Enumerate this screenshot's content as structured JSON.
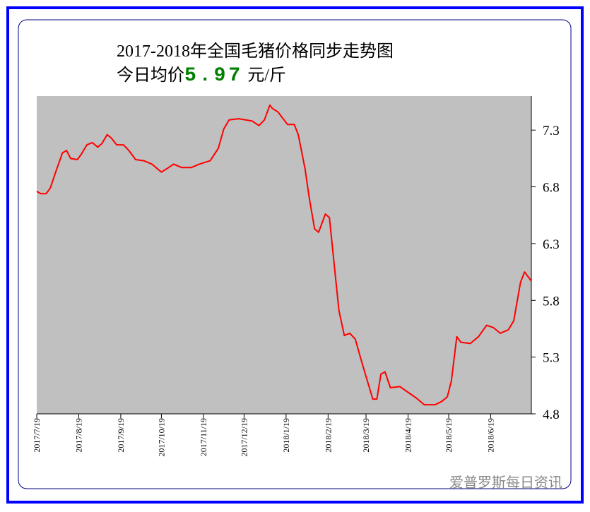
{
  "chart_data": {
    "type": "line",
    "title": "2017-2018年全国毛猪价格同步走势图",
    "price_label": "今日均价",
    "price_today": 5.97,
    "price_unit": "元/斤",
    "watermark": "爱普罗斯每日资讯",
    "color": "#ff0000",
    "x": [
      "2017/7/19",
      "2017/7/22",
      "2017/7/26",
      "2017/7/29",
      "2017/8/2",
      "2017/8/7",
      "2017/8/10",
      "2017/8/13",
      "2017/8/18",
      "2017/8/21",
      "2017/8/25",
      "2017/8/29",
      "2017/9/2",
      "2017/9/5",
      "2017/9/9",
      "2017/9/12",
      "2017/9/16",
      "2017/9/21",
      "2017/9/25",
      "2017/9/30",
      "2017/10/6",
      "2017/10/12",
      "2017/10/19",
      "2017/10/23",
      "2017/10/28",
      "2017/11/3",
      "2017/11/10",
      "2017/11/16",
      "2017/11/24",
      "2017/11/30",
      "2017/12/4",
      "2017/12/8",
      "2017/12/15",
      "2017/12/25",
      "2017/12/30",
      "2018/1/3",
      "2018/1/7",
      "2018/1/9",
      "2018/1/13",
      "2018/1/20",
      "2018/1/25",
      "2018/1/28",
      "2018/2/2",
      "2018/2/5",
      "2018/2/9",
      "2018/2/12",
      "2018/2/17",
      "2018/2/20",
      "2018/2/24",
      "2018/2/27",
      "2018/3/3",
      "2018/3/7",
      "2018/3/11",
      "2018/3/15",
      "2018/3/20",
      "2018/3/24",
      "2018/3/27",
      "2018/3/30",
      "2018/4/2",
      "2018/4/6",
      "2018/4/13",
      "2018/4/19",
      "2018/4/25",
      "2018/5/1",
      "2018/5/9",
      "2018/5/14",
      "2018/5/18",
      "2018/5/21",
      "2018/5/25",
      "2018/5/28",
      "2018/6/4",
      "2018/6/10",
      "2018/6/16",
      "2018/6/21",
      "2018/6/26",
      "2018/7/2",
      "2018/7/6",
      "2018/7/11",
      "2018/7/14",
      "2018/7/19"
    ],
    "values": [
      6.76,
      6.74,
      6.74,
      6.79,
      6.93,
      7.1,
      7.12,
      7.05,
      7.04,
      7.09,
      7.17,
      7.19,
      7.15,
      7.18,
      7.26,
      7.23,
      7.17,
      7.17,
      7.12,
      7.04,
      7.03,
      7.0,
      6.93,
      6.96,
      7.0,
      6.97,
      6.97,
      7.0,
      7.03,
      7.14,
      7.31,
      7.39,
      7.4,
      7.38,
      7.34,
      7.39,
      7.52,
      7.49,
      7.46,
      7.35,
      7.35,
      7.26,
      6.96,
      6.71,
      6.43,
      6.4,
      6.56,
      6.53,
      6.06,
      5.71,
      5.49,
      5.51,
      5.46,
      5.29,
      5.09,
      4.93,
      4.93,
      5.15,
      5.17,
      5.03,
      5.04,
      4.99,
      4.94,
      4.88,
      4.88,
      4.91,
      4.95,
      5.09,
      5.48,
      5.43,
      5.42,
      5.48,
      5.58,
      5.56,
      5.51,
      5.54,
      5.62,
      5.96,
      6.05,
      5.97
    ],
    "xlim": [
      "2017/7/19",
      "2018/7/19"
    ],
    "xticks": [
      "2017/7/19",
      "2017/8/19",
      "2017/9/19",
      "2017/10/19",
      "2017/11/19",
      "2017/12/19",
      "2018/1/19",
      "2018/2/19",
      "2018/3/19",
      "2018/4/19",
      "2018/5/19",
      "2018/6/19"
    ],
    "ylim": [
      4.8,
      7.6
    ],
    "yticks": [
      4.8,
      5.3,
      5.8,
      6.3,
      6.8,
      7.3
    ]
  }
}
